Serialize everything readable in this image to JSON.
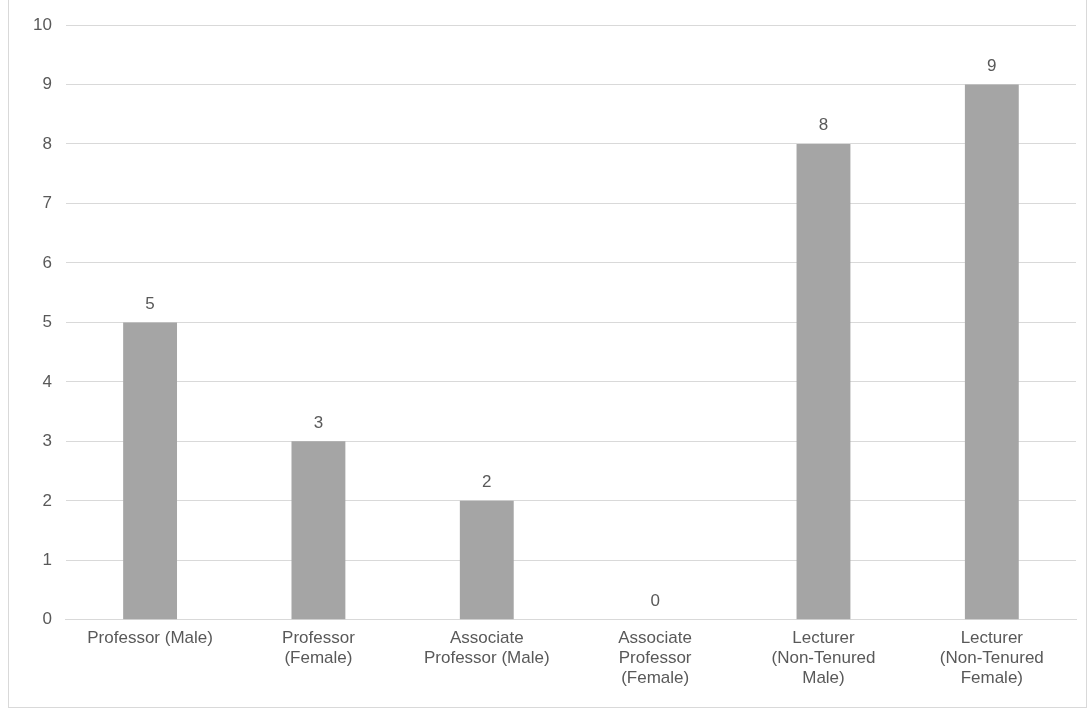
{
  "chart_data": {
    "type": "bar",
    "categories": [
      "Professor (Male)",
      "Professor (Female)",
      "Associate Professor (Male)",
      "Associate Professor (Female)",
      "Lecturer (Non-Tenured Male)",
      "Lecturer (Non-Tenured Female)"
    ],
    "values": [
      5,
      3,
      2,
      0,
      8,
      9
    ],
    "color": "#a5a5a5",
    "ylim": [
      0,
      10
    ],
    "yticks": [
      0,
      1,
      2,
      3,
      4,
      5,
      6,
      7,
      8,
      9,
      10
    ],
    "grid": "y",
    "legend": false,
    "data_labels": true
  }
}
